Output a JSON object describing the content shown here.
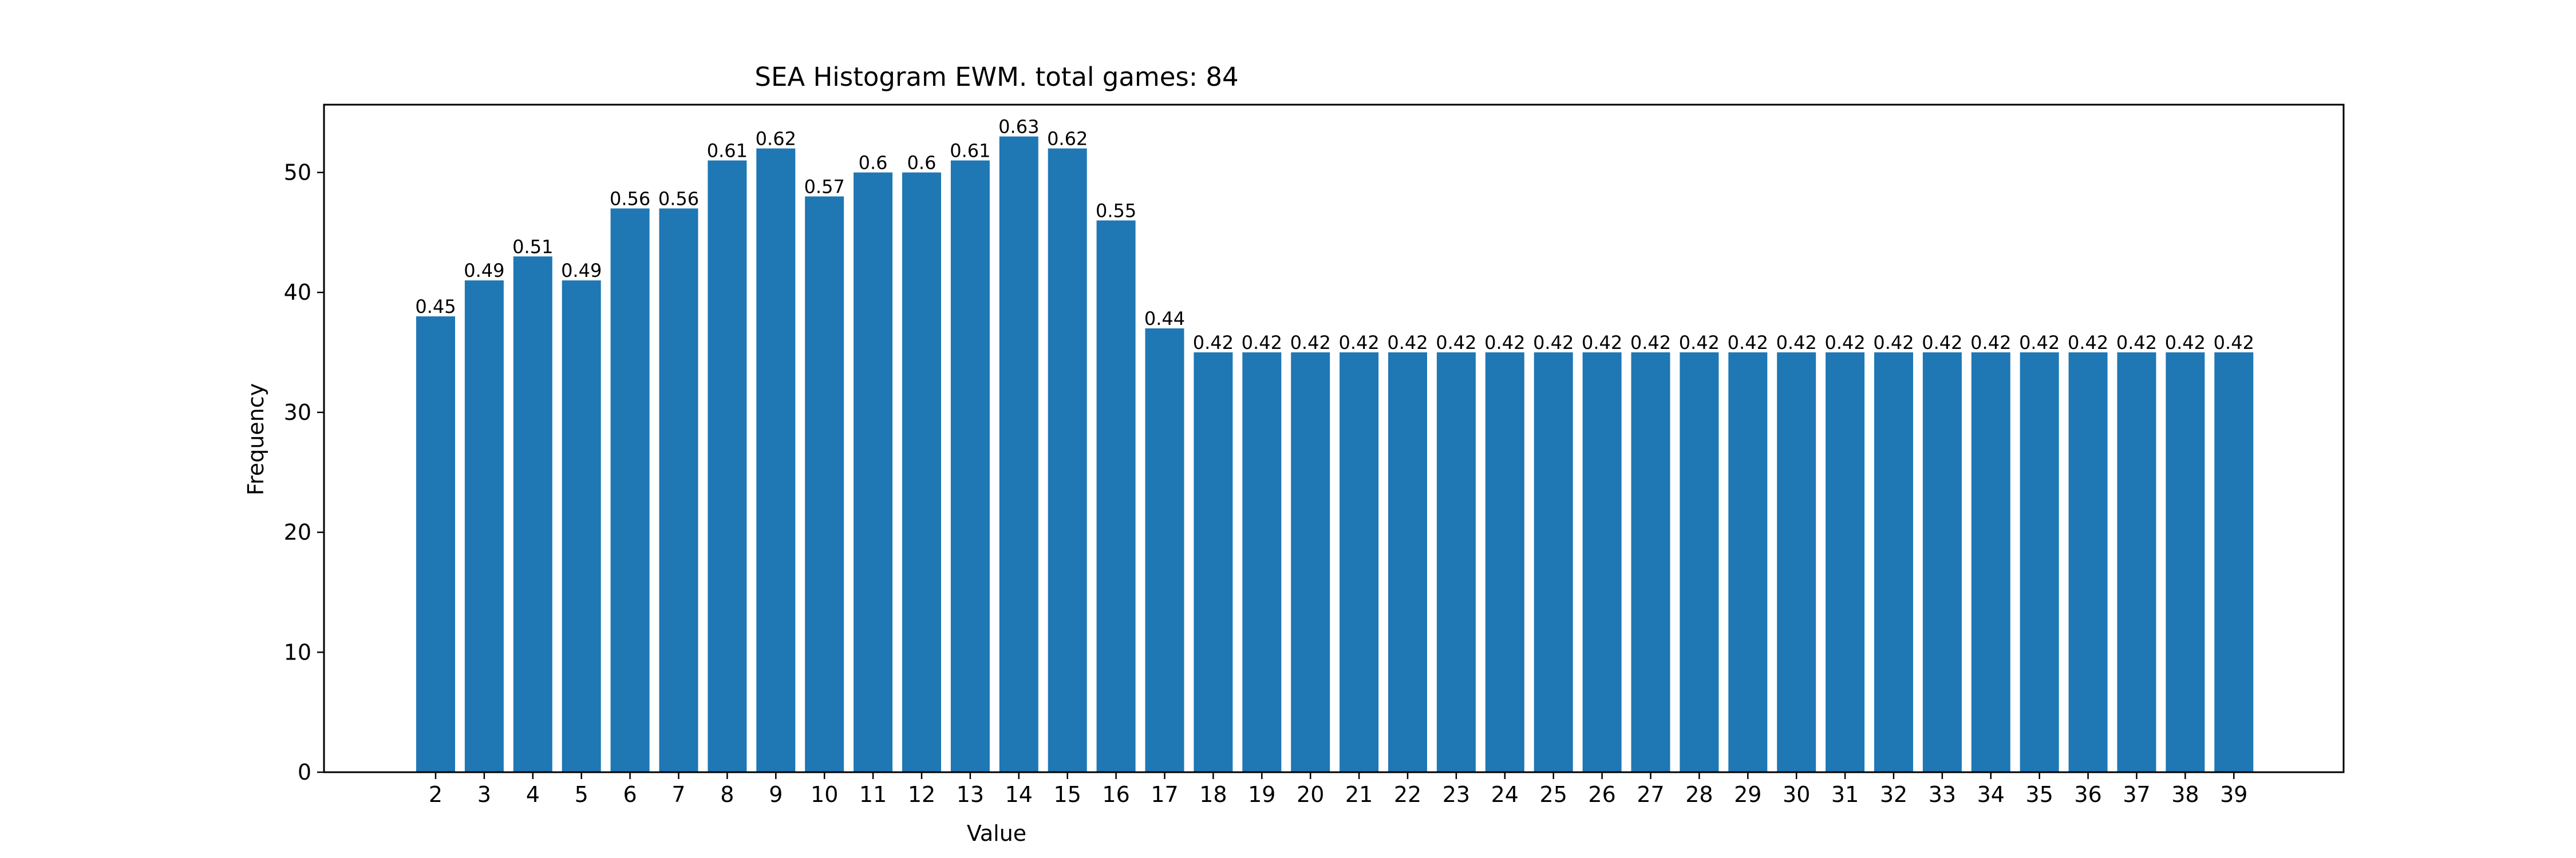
{
  "chart_data": {
    "type": "bar",
    "title": "SEA Histogram EWM. total games: 84",
    "xlabel": "Value",
    "ylabel": "Frequency",
    "ylim": [
      0,
      55.65
    ],
    "yticks": [
      0,
      10,
      20,
      30,
      40,
      50
    ],
    "grid": false,
    "bar_color": "#1f77b4",
    "categories": [
      "2",
      "3",
      "4",
      "5",
      "6",
      "7",
      "8",
      "9",
      "10",
      "11",
      "12",
      "13",
      "14",
      "15",
      "16",
      "17",
      "18",
      "19",
      "20",
      "21",
      "22",
      "23",
      "24",
      "25",
      "26",
      "27",
      "28",
      "29",
      "30",
      "31",
      "32",
      "33",
      "34",
      "35",
      "36",
      "37",
      "38",
      "39"
    ],
    "values": [
      38,
      41,
      43,
      41,
      47,
      47,
      51,
      52,
      48,
      50,
      50,
      51,
      53,
      52,
      46,
      37,
      35,
      35,
      35,
      35,
      35,
      35,
      35,
      35,
      35,
      35,
      35,
      35,
      35,
      35,
      35,
      35,
      35,
      35,
      35,
      35,
      35,
      35
    ],
    "bar_labels": [
      "0.45",
      "0.49",
      "0.51",
      "0.49",
      "0.56",
      "0.56",
      "0.61",
      "0.62",
      "0.57",
      "0.6",
      "0.6",
      "0.61",
      "0.63",
      "0.62",
      "0.55",
      "0.44",
      "0.42",
      "0.42",
      "0.42",
      "0.42",
      "0.42",
      "0.42",
      "0.42",
      "0.42",
      "0.42",
      "0.42",
      "0.42",
      "0.42",
      "0.42",
      "0.42",
      "0.42",
      "0.42",
      "0.42",
      "0.42",
      "0.42",
      "0.42",
      "0.42",
      "0.42"
    ]
  }
}
